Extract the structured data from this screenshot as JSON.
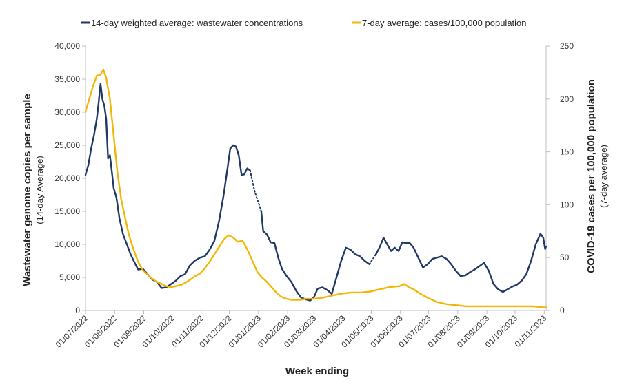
{
  "chart_data": {
    "type": "line",
    "xlabel": "Week ending",
    "x_ticks": [
      "01/07/2022",
      "01/08/2022",
      "01/09/2022",
      "01/10/2022",
      "01/11/2022",
      "01/12/2022",
      "01/01/2023",
      "01/02/2023",
      "01/03/2023",
      "01/04/2023",
      "01/05/2023",
      "01/06/2023",
      "01/07/2023",
      "01/08/2023",
      "01/09/2023",
      "01/10/2023",
      "01/11/2023"
    ],
    "x_range": [
      "01/07/2022",
      "03/11/2023"
    ],
    "y_left": {
      "label": "Wastewater genome copies per sample",
      "sublabel": "(14-day Average)",
      "ylim": [
        0,
        40000
      ],
      "ticks": [
        "0",
        "5,000",
        "10,000",
        "15,000",
        "20,000",
        "25,000",
        "30,000",
        "35,000",
        "40,000"
      ]
    },
    "y_right": {
      "label": "COVID-19 cases per 100,000 population",
      "sublabel": "(7-day average)",
      "ylim": [
        0,
        250
      ],
      "ticks": [
        "0",
        "50",
        "100",
        "150",
        "200",
        "250"
      ]
    },
    "grid": "none",
    "legend_position": "top",
    "series": [
      {
        "name": "14-day weighted average: wastewater concentrations",
        "axis": "left",
        "color": "#1f3864",
        "dotted_segments": [
          [
            "23/12/2022",
            "04/01/2023"
          ],
          [
            "29/04/2023",
            "06/05/2023"
          ]
        ],
        "points": [
          [
            "01/07/2022",
            20500
          ],
          [
            "04/07/2022",
            22000
          ],
          [
            "07/07/2022",
            24500
          ],
          [
            "10/07/2022",
            26500
          ],
          [
            "13/07/2022",
            29000
          ],
          [
            "15/07/2022",
            31500
          ],
          [
            "17/07/2022",
            34300
          ],
          [
            "19/07/2022",
            32000
          ],
          [
            "21/07/2022",
            31000
          ],
          [
            "23/07/2022",
            29000
          ],
          [
            "25/07/2022",
            23000
          ],
          [
            "27/07/2022",
            23500
          ],
          [
            "29/07/2022",
            21000
          ],
          [
            "31/07/2022",
            18500
          ],
          [
            "03/08/2022",
            17000
          ],
          [
            "06/08/2022",
            14000
          ],
          [
            "10/08/2022",
            11500
          ],
          [
            "14/08/2022",
            10000
          ],
          [
            "18/08/2022",
            8500
          ],
          [
            "22/08/2022",
            7300
          ],
          [
            "26/08/2022",
            6200
          ],
          [
            "31/08/2022",
            6300
          ],
          [
            "05/09/2022",
            5500
          ],
          [
            "10/09/2022",
            4700
          ],
          [
            "15/09/2022",
            4300
          ],
          [
            "20/09/2022",
            3400
          ],
          [
            "25/09/2022",
            3500
          ],
          [
            "30/09/2022",
            4000
          ],
          [
            "05/10/2022",
            4500
          ],
          [
            "10/10/2022",
            5200
          ],
          [
            "15/10/2022",
            5500
          ],
          [
            "20/10/2022",
            6800
          ],
          [
            "25/10/2022",
            7500
          ],
          [
            "31/10/2022",
            8000
          ],
          [
            "05/11/2022",
            8200
          ],
          [
            "10/11/2022",
            9200
          ],
          [
            "15/11/2022",
            10500
          ],
          [
            "20/11/2022",
            13500
          ],
          [
            "25/11/2022",
            17500
          ],
          [
            "29/11/2022",
            21500
          ],
          [
            "02/12/2022",
            24500
          ],
          [
            "05/12/2022",
            25000
          ],
          [
            "08/12/2022",
            24800
          ],
          [
            "11/12/2022",
            23500
          ],
          [
            "14/12/2022",
            20500
          ],
          [
            "17/12/2022",
            20600
          ],
          [
            "20/12/2022",
            21500
          ],
          [
            "23/12/2022",
            21200
          ],
          [
            "28/12/2022",
            18000
          ],
          [
            "04/01/2023",
            15000
          ],
          [
            "06/01/2023",
            12000
          ],
          [
            "10/01/2023",
            11500
          ],
          [
            "14/01/2023",
            10300
          ],
          [
            "18/01/2023",
            10200
          ],
          [
            "22/01/2023",
            8000
          ],
          [
            "26/01/2023",
            6300
          ],
          [
            "31/01/2023",
            5200
          ],
          [
            "05/02/2023",
            4300
          ],
          [
            "10/02/2023",
            3000
          ],
          [
            "15/02/2023",
            2000
          ],
          [
            "20/02/2023",
            1700
          ],
          [
            "25/02/2023",
            1500
          ],
          [
            "01/03/2023",
            2000
          ],
          [
            "05/03/2023",
            3300
          ],
          [
            "10/03/2023",
            3500
          ],
          [
            "15/03/2023",
            3100
          ],
          [
            "20/03/2023",
            2500
          ],
          [
            "25/03/2023",
            5000
          ],
          [
            "30/03/2023",
            7500
          ],
          [
            "04/04/2023",
            9500
          ],
          [
            "09/04/2023",
            9200
          ],
          [
            "14/04/2023",
            8500
          ],
          [
            "19/04/2023",
            8200
          ],
          [
            "24/04/2023",
            7500
          ],
          [
            "29/04/2023",
            7000
          ],
          [
            "06/05/2023",
            8500
          ],
          [
            "10/05/2023",
            9600
          ],
          [
            "14/05/2023",
            11000
          ],
          [
            "18/05/2023",
            10000
          ],
          [
            "22/05/2023",
            9000
          ],
          [
            "26/05/2023",
            9500
          ],
          [
            "30/05/2023",
            9000
          ],
          [
            "03/06/2023",
            10300
          ],
          [
            "07/06/2023",
            10200
          ],
          [
            "11/06/2023",
            10200
          ],
          [
            "15/06/2023",
            9500
          ],
          [
            "20/06/2023",
            8000
          ],
          [
            "25/06/2023",
            6500
          ],
          [
            "30/06/2023",
            7000
          ],
          [
            "05/07/2023",
            7800
          ],
          [
            "10/07/2023",
            8000
          ],
          [
            "15/07/2023",
            8200
          ],
          [
            "20/07/2023",
            7800
          ],
          [
            "25/07/2023",
            7000
          ],
          [
            "30/07/2023",
            6000
          ],
          [
            "04/08/2023",
            5200
          ],
          [
            "09/08/2023",
            5300
          ],
          [
            "14/08/2023",
            5800
          ],
          [
            "19/08/2023",
            6200
          ],
          [
            "24/08/2023",
            6700
          ],
          [
            "29/08/2023",
            7200
          ],
          [
            "03/09/2023",
            6000
          ],
          [
            "08/09/2023",
            4000
          ],
          [
            "13/09/2023",
            3200
          ],
          [
            "18/09/2023",
            2800
          ],
          [
            "23/09/2023",
            3200
          ],
          [
            "28/09/2023",
            3600
          ],
          [
            "03/10/2023",
            3900
          ],
          [
            "08/10/2023",
            4500
          ],
          [
            "13/10/2023",
            5500
          ],
          [
            "18/10/2023",
            7500
          ],
          [
            "23/10/2023",
            10000
          ],
          [
            "28/10/2023",
            11600
          ],
          [
            "31/10/2023",
            11000
          ],
          [
            "02/11/2023",
            9300
          ],
          [
            "03/11/2023",
            9700
          ]
        ]
      },
      {
        "name": "7-day average: cases/100,000 population",
        "axis": "right",
        "color": "#f2b705",
        "points": [
          [
            "01/07/2022",
            188
          ],
          [
            "05/07/2022",
            200
          ],
          [
            "09/07/2022",
            212
          ],
          [
            "13/07/2022",
            222
          ],
          [
            "17/07/2022",
            223
          ],
          [
            "20/07/2022",
            228
          ],
          [
            "23/07/2022",
            220
          ],
          [
            "27/07/2022",
            200
          ],
          [
            "31/07/2022",
            165
          ],
          [
            "04/08/2022",
            130
          ],
          [
            "08/08/2022",
            105
          ],
          [
            "12/08/2022",
            88
          ],
          [
            "16/08/2022",
            72
          ],
          [
            "21/08/2022",
            58
          ],
          [
            "26/08/2022",
            46
          ],
          [
            "31/08/2022",
            38
          ],
          [
            "05/09/2022",
            34
          ],
          [
            "10/09/2022",
            30
          ],
          [
            "15/09/2022",
            27
          ],
          [
            "20/09/2022",
            25
          ],
          [
            "25/09/2022",
            23
          ],
          [
            "30/09/2022",
            22
          ],
          [
            "05/10/2022",
            23
          ],
          [
            "10/10/2022",
            24
          ],
          [
            "15/10/2022",
            26
          ],
          [
            "20/10/2022",
            29
          ],
          [
            "25/10/2022",
            32
          ],
          [
            "31/10/2022",
            35
          ],
          [
            "05/11/2022",
            40
          ],
          [
            "10/11/2022",
            46
          ],
          [
            "15/11/2022",
            53
          ],
          [
            "20/11/2022",
            60
          ],
          [
            "25/11/2022",
            67
          ],
          [
            "30/11/2022",
            71
          ],
          [
            "05/12/2022",
            69
          ],
          [
            "10/12/2022",
            65
          ],
          [
            "15/12/2022",
            66
          ],
          [
            "20/12/2022",
            58
          ],
          [
            "25/12/2022",
            48
          ],
          [
            "31/12/2022",
            36
          ],
          [
            "05/01/2023",
            31
          ],
          [
            "10/01/2023",
            27
          ],
          [
            "15/01/2023",
            22
          ],
          [
            "20/01/2023",
            17
          ],
          [
            "25/01/2023",
            13
          ],
          [
            "31/01/2023",
            11
          ],
          [
            "05/02/2023",
            10
          ],
          [
            "10/02/2023",
            10
          ],
          [
            "15/02/2023",
            10
          ],
          [
            "20/02/2023",
            11
          ],
          [
            "25/02/2023",
            11
          ],
          [
            "01/03/2023",
            11
          ],
          [
            "10/03/2023",
            12
          ],
          [
            "20/03/2023",
            14
          ],
          [
            "31/03/2023",
            16
          ],
          [
            "10/04/2023",
            17
          ],
          [
            "20/04/2023",
            17
          ],
          [
            "30/04/2023",
            18
          ],
          [
            "10/05/2023",
            20
          ],
          [
            "20/05/2023",
            22
          ],
          [
            "31/05/2023",
            23
          ],
          [
            "05/06/2023",
            25
          ],
          [
            "10/06/2023",
            22
          ],
          [
            "15/06/2023",
            20
          ],
          [
            "20/06/2023",
            17
          ],
          [
            "30/06/2023",
            12
          ],
          [
            "10/07/2023",
            8
          ],
          [
            "20/07/2023",
            6
          ],
          [
            "31/07/2023",
            5
          ],
          [
            "10/08/2023",
            4
          ],
          [
            "20/08/2023",
            4
          ],
          [
            "31/08/2023",
            4
          ],
          [
            "10/09/2023",
            4
          ],
          [
            "20/09/2023",
            4
          ],
          [
            "30/09/2023",
            4
          ],
          [
            "10/10/2023",
            4
          ],
          [
            "20/10/2023",
            4
          ],
          [
            "31/10/2023",
            3
          ],
          [
            "03/11/2023",
            3
          ]
        ]
      }
    ]
  }
}
